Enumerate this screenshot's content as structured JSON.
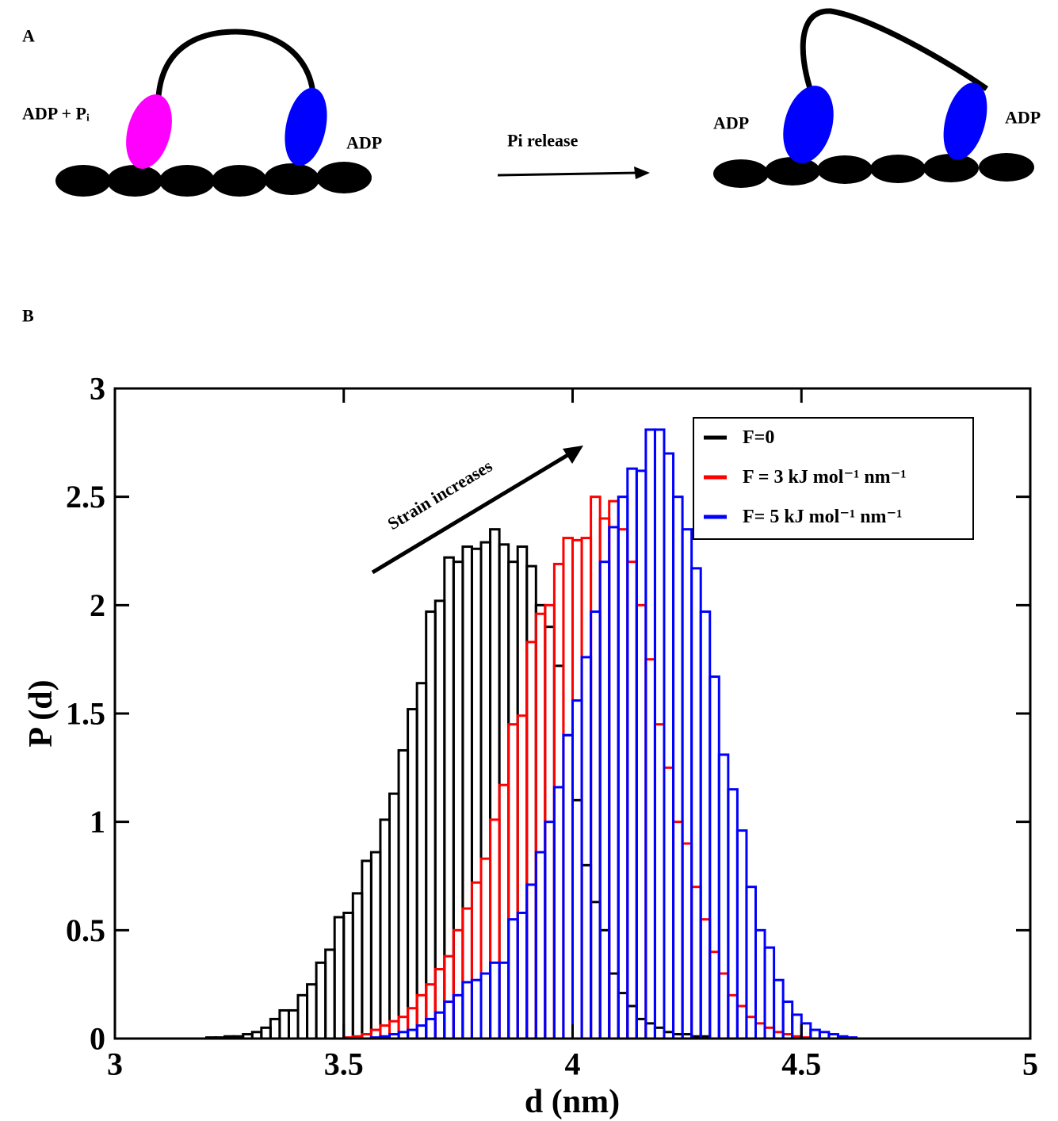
{
  "panel_a": {
    "label": "A",
    "texts": [
      "ADP + Pᵢ",
      "ADP",
      "Pi release",
      "ADP",
      "ADP"
    ]
  },
  "panel_b_label": "B",
  "chart_data": {
    "type": "histogram",
    "x_label": "d (nm)",
    "y_label": "P (d)",
    "annotation": "Strain increases",
    "xlim": [
      3,
      5
    ],
    "xticks": [
      3,
      3.5,
      4,
      4.5,
      5
    ],
    "ylim": [
      0,
      3
    ],
    "yticks": [
      0,
      0.5,
      1,
      1.5,
      2,
      2.5,
      3
    ],
    "legend": "upper right",
    "bins": [
      3.2,
      3.22,
      3.24,
      3.26,
      3.28,
      3.3,
      3.32,
      3.34,
      3.36,
      3.38,
      3.4,
      3.42,
      3.44,
      3.46,
      3.48,
      3.5,
      3.52,
      3.54,
      3.56,
      3.58,
      3.6,
      3.62,
      3.64,
      3.66,
      3.68,
      3.7,
      3.72,
      3.74,
      3.76,
      3.78,
      3.8,
      3.82,
      3.84,
      3.86,
      3.88,
      3.9,
      3.92,
      3.94,
      3.96,
      3.98,
      4.0,
      4.02,
      4.04,
      4.06,
      4.08,
      4.1,
      4.12,
      4.14,
      4.16,
      4.18,
      4.2,
      4.22,
      4.24,
      4.26,
      4.28,
      4.3,
      4.32,
      4.34,
      4.36,
      4.38,
      4.4,
      4.42,
      4.44,
      4.46,
      4.48,
      4.5,
      4.52,
      4.54,
      4.56,
      4.58,
      4.6,
      4.62,
      4.64,
      4.66,
      4.68,
      4.7
    ],
    "series": [
      {
        "name": "F=0",
        "color": "#000000",
        "values": [
          0.005,
          0.005,
          0.01,
          0.01,
          0.02,
          0.03,
          0.05,
          0.09,
          0.13,
          0.13,
          0.2,
          0.25,
          0.35,
          0.41,
          0.56,
          0.58,
          0.67,
          0.82,
          0.86,
          1.01,
          1.13,
          1.33,
          1.52,
          1.64,
          1.97,
          2.02,
          2.22,
          2.2,
          2.27,
          2.26,
          2.29,
          2.35,
          2.28,
          2.2,
          2.27,
          2.18,
          2.0,
          1.9,
          1.72,
          1.4,
          1.1,
          0.8,
          0.63,
          0.5,
          0.3,
          0.21,
          0.15,
          0.09,
          0.07,
          0.05,
          0.03,
          0.02,
          0.02,
          0.01,
          0.01,
          0,
          0,
          0,
          0,
          0,
          0,
          0,
          0,
          0,
          0,
          0,
          0,
          0,
          0,
          0,
          0,
          0,
          0,
          0,
          0
        ]
      },
      {
        "name": "F = 3 kJ mol⁻¹ nm⁻¹",
        "color": "#ff0000",
        "values": [
          0,
          0,
          0,
          0,
          0,
          0,
          0,
          0,
          0,
          0,
          0,
          0,
          0,
          0,
          0,
          0.005,
          0.01,
          0.02,
          0.04,
          0.06,
          0.08,
          0.1,
          0.14,
          0.2,
          0.25,
          0.32,
          0.38,
          0.5,
          0.6,
          0.72,
          0.83,
          1.01,
          1.17,
          1.45,
          1.49,
          1.83,
          1.96,
          2.0,
          2.19,
          2.31,
          2.3,
          2.31,
          2.5,
          2.4,
          2.48,
          2.35,
          2.2,
          2.0,
          1.75,
          1.45,
          1.25,
          1.0,
          0.9,
          0.7,
          0.55,
          0.4,
          0.3,
          0.2,
          0.15,
          0.1,
          0.07,
          0.05,
          0.03,
          0.02,
          0.01,
          0.005,
          0,
          0,
          0,
          0,
          0,
          0,
          0,
          0,
          0
        ]
      },
      {
        "name": "F= 5 kJ mol⁻¹ nm⁻¹",
        "color": "#0000ff",
        "values": [
          0,
          0,
          0,
          0,
          0,
          0,
          0,
          0,
          0,
          0,
          0,
          0,
          0,
          0,
          0,
          0,
          0,
          0,
          0.005,
          0.01,
          0.02,
          0.03,
          0.04,
          0.06,
          0.09,
          0.12,
          0.17,
          0.2,
          0.26,
          0.27,
          0.3,
          0.35,
          0.35,
          0.55,
          0.58,
          0.71,
          0.86,
          1.0,
          1.16,
          1.4,
          1.56,
          1.76,
          1.97,
          2.2,
          2.36,
          2.5,
          2.63,
          2.62,
          2.81,
          2.81,
          2.7,
          2.5,
          2.35,
          2.17,
          1.97,
          1.67,
          1.31,
          1.15,
          0.96,
          0.7,
          0.5,
          0.42,
          0.27,
          0.17,
          0.11,
          0.07,
          0.04,
          0.03,
          0.02,
          0.01,
          0.005,
          0,
          0,
          0,
          0
        ]
      }
    ]
  }
}
